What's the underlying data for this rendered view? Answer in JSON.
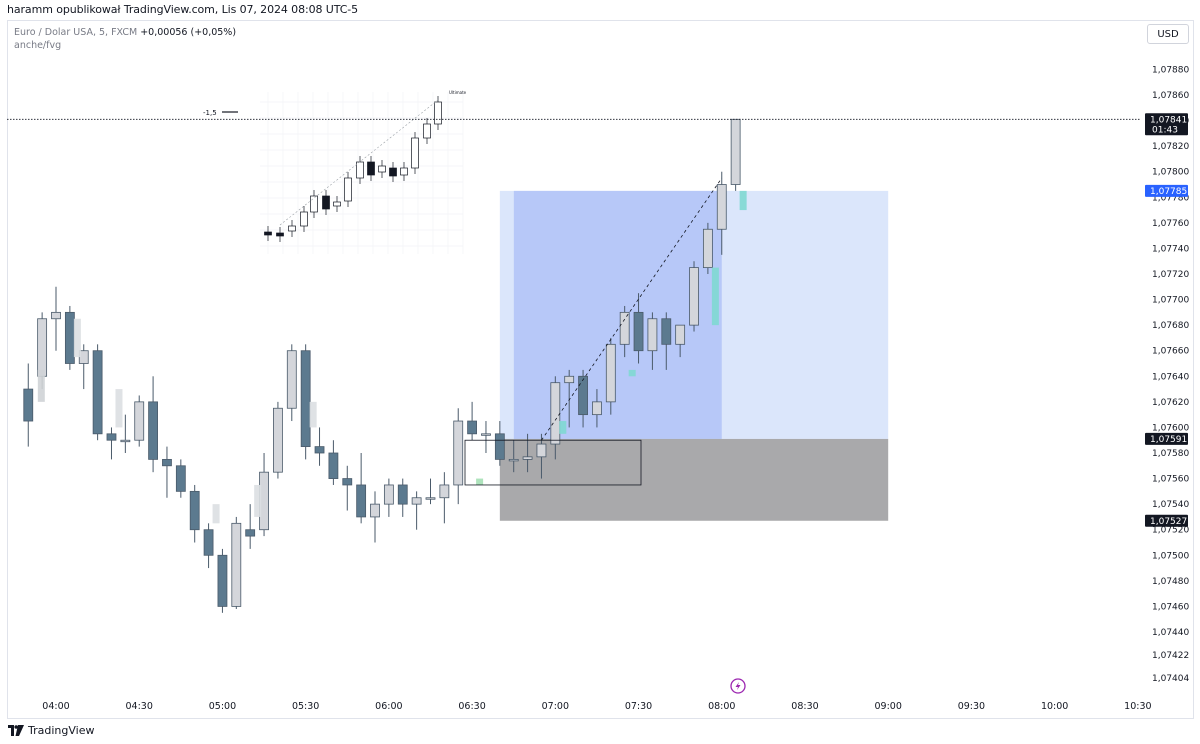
{
  "header": {
    "published_by": "haramm opublikował TradingView.com, Lis 07, 2024 08:08 UTC-5"
  },
  "legend": {
    "symbol": "Euro / Dolar USA, 5, FXCM",
    "change": "+0,00056 (+0,05%)",
    "indicator": "anche/fvg"
  },
  "currency_button": "USD",
  "footer": {
    "brand": "TradingView"
  },
  "inset": {
    "label": "-1,5",
    "small_label": "Ultimate"
  },
  "chart_data": {
    "type": "candlestick",
    "price_axis": {
      "ticks": [
        "1,07880",
        "1,07860",
        "1,07840",
        "1,07820",
        "1,07800",
        "1,07780",
        "1,07760",
        "1,07740",
        "1,07720",
        "1,07700",
        "1,07680",
        "1,07660",
        "1,07640",
        "1,07620",
        "1,07600",
        "1,07580",
        "1,07560",
        "1,07540",
        "1,07520",
        "1,07500",
        "1,07480",
        "1,07460",
        "1,07440",
        "1,07422",
        "1,07404"
      ],
      "range": [
        1.07404,
        1.0788
      ]
    },
    "time_axis": {
      "ticks": [
        "04:00",
        "04:30",
        "05:00",
        "05:30",
        "06:00",
        "06:30",
        "07:00",
        "07:30",
        "08:00",
        "08:30",
        "09:00",
        "09:30",
        "10:00",
        "10:30"
      ]
    },
    "price_labels": [
      {
        "value": 1.07841,
        "text": "1,07841",
        "sub": "01:43",
        "color": "#131722"
      },
      {
        "value": 1.07785,
        "text": "1,07785",
        "color": "#2962ff"
      },
      {
        "value": 1.07591,
        "text": "1,07591",
        "color": "#131722"
      },
      {
        "value": 1.07527,
        "text": "1,07527",
        "color": "#131722"
      }
    ],
    "position_tool": {
      "entry": 1.07591,
      "target": 1.07785,
      "stop": 1.07527,
      "time_start": "06:40",
      "time_end": "09:00"
    },
    "candles": [
      {
        "t": "03:50",
        "o": 1.0763,
        "h": 1.0765,
        "l": 1.07585,
        "c": 1.07605
      },
      {
        "t": "03:55",
        "o": 1.0764,
        "h": 1.0769,
        "l": 1.0763,
        "c": 1.07685
      },
      {
        "t": "04:00",
        "o": 1.07685,
        "h": 1.0771,
        "l": 1.0766,
        "c": 1.0769
      },
      {
        "t": "04:05",
        "o": 1.0769,
        "h": 1.07695,
        "l": 1.07645,
        "c": 1.0765
      },
      {
        "t": "04:10",
        "o": 1.0765,
        "h": 1.07665,
        "l": 1.0763,
        "c": 1.0766
      },
      {
        "t": "04:15",
        "o": 1.0766,
        "h": 1.07665,
        "l": 1.0759,
        "c": 1.07595
      },
      {
        "t": "04:20",
        "o": 1.07595,
        "h": 1.076,
        "l": 1.07575,
        "c": 1.0759
      },
      {
        "t": "04:25",
        "o": 1.0759,
        "h": 1.0761,
        "l": 1.0758,
        "c": 1.0759
      },
      {
        "t": "04:30",
        "o": 1.0759,
        "h": 1.07625,
        "l": 1.07585,
        "c": 1.0762
      },
      {
        "t": "04:35",
        "o": 1.0762,
        "h": 1.0764,
        "l": 1.07565,
        "c": 1.07575
      },
      {
        "t": "04:40",
        "o": 1.07575,
        "h": 1.07585,
        "l": 1.07545,
        "c": 1.0757
      },
      {
        "t": "04:45",
        "o": 1.0757,
        "h": 1.07575,
        "l": 1.07545,
        "c": 1.0755
      },
      {
        "t": "04:50",
        "o": 1.0755,
        "h": 1.07555,
        "l": 1.0751,
        "c": 1.0752
      },
      {
        "t": "04:55",
        "o": 1.0752,
        "h": 1.07525,
        "l": 1.0749,
        "c": 1.075
      },
      {
        "t": "05:00",
        "o": 1.075,
        "h": 1.07505,
        "l": 1.07455,
        "c": 1.0746
      },
      {
        "t": "05:05",
        "o": 1.0746,
        "h": 1.0753,
        "l": 1.07458,
        "c": 1.07525
      },
      {
        "t": "05:10",
        "o": 1.0752,
        "h": 1.0754,
        "l": 1.07505,
        "c": 1.07515
      },
      {
        "t": "05:15",
        "o": 1.0752,
        "h": 1.0758,
        "l": 1.07515,
        "c": 1.07565
      },
      {
        "t": "05:20",
        "o": 1.07565,
        "h": 1.0762,
        "l": 1.0756,
        "c": 1.07615
      },
      {
        "t": "05:25",
        "o": 1.07615,
        "h": 1.07665,
        "l": 1.07605,
        "c": 1.0766
      },
      {
        "t": "05:30",
        "o": 1.0766,
        "h": 1.07665,
        "l": 1.07575,
        "c": 1.07585
      },
      {
        "t": "05:35",
        "o": 1.07585,
        "h": 1.076,
        "l": 1.0757,
        "c": 1.0758
      },
      {
        "t": "05:40",
        "o": 1.0758,
        "h": 1.0759,
        "l": 1.07555,
        "c": 1.0756
      },
      {
        "t": "05:45",
        "o": 1.0756,
        "h": 1.0757,
        "l": 1.07535,
        "c": 1.07555
      },
      {
        "t": "05:50",
        "o": 1.07555,
        "h": 1.0758,
        "l": 1.07525,
        "c": 1.0753
      },
      {
        "t": "05:55",
        "o": 1.0753,
        "h": 1.0755,
        "l": 1.0751,
        "c": 1.0754
      },
      {
        "t": "06:00",
        "o": 1.0754,
        "h": 1.0756,
        "l": 1.0753,
        "c": 1.07555
      },
      {
        "t": "06:05",
        "o": 1.07555,
        "h": 1.0756,
        "l": 1.0753,
        "c": 1.0754
      },
      {
        "t": "06:10",
        "o": 1.0754,
        "h": 1.0755,
        "l": 1.0752,
        "c": 1.07545
      },
      {
        "t": "06:15",
        "o": 1.07545,
        "h": 1.0756,
        "l": 1.0754,
        "c": 1.07545
      },
      {
        "t": "06:20",
        "o": 1.07545,
        "h": 1.07565,
        "l": 1.07525,
        "c": 1.07555
      },
      {
        "t": "06:25",
        "o": 1.07555,
        "h": 1.07615,
        "l": 1.0754,
        "c": 1.07605
      },
      {
        "t": "06:30",
        "o": 1.07605,
        "h": 1.0762,
        "l": 1.0759,
        "c": 1.07595
      },
      {
        "t": "06:35",
        "o": 1.07595,
        "h": 1.07605,
        "l": 1.0758,
        "c": 1.07595
      },
      {
        "t": "06:40",
        "o": 1.07595,
        "h": 1.07605,
        "l": 1.0757,
        "c": 1.07575
      },
      {
        "t": "06:45",
        "o": 1.07575,
        "h": 1.0759,
        "l": 1.07565,
        "c": 1.07575
      },
      {
        "t": "06:50",
        "o": 1.07575,
        "h": 1.07595,
        "l": 1.07565,
        "c": 1.07577
      },
      {
        "t": "06:55",
        "o": 1.07577,
        "h": 1.07595,
        "l": 1.0756,
        "c": 1.07587
      },
      {
        "t": "07:00",
        "o": 1.07587,
        "h": 1.0764,
        "l": 1.07575,
        "c": 1.07635
      },
      {
        "t": "07:05",
        "o": 1.07635,
        "h": 1.07645,
        "l": 1.076,
        "c": 1.0764
      },
      {
        "t": "07:10",
        "o": 1.0764,
        "h": 1.07645,
        "l": 1.076,
        "c": 1.0761
      },
      {
        "t": "07:15",
        "o": 1.0761,
        "h": 1.0763,
        "l": 1.076,
        "c": 1.0762
      },
      {
        "t": "07:20",
        "o": 1.0762,
        "h": 1.0767,
        "l": 1.0761,
        "c": 1.07665
      },
      {
        "t": "07:25",
        "o": 1.07665,
        "h": 1.07695,
        "l": 1.07655,
        "c": 1.0769
      },
      {
        "t": "07:30",
        "o": 1.0769,
        "h": 1.07705,
        "l": 1.0765,
        "c": 1.0766
      },
      {
        "t": "07:35",
        "o": 1.0766,
        "h": 1.0769,
        "l": 1.07645,
        "c": 1.07685
      },
      {
        "t": "07:40",
        "o": 1.07685,
        "h": 1.0769,
        "l": 1.07645,
        "c": 1.07665
      },
      {
        "t": "07:45",
        "o": 1.07665,
        "h": 1.0768,
        "l": 1.07655,
        "c": 1.0768
      },
      {
        "t": "07:50",
        "o": 1.0768,
        "h": 1.0773,
        "l": 1.07675,
        "c": 1.07725
      },
      {
        "t": "07:55",
        "o": 1.07725,
        "h": 1.0776,
        "l": 1.0772,
        "c": 1.07755
      },
      {
        "t": "08:00",
        "o": 1.07755,
        "h": 1.078,
        "l": 1.07735,
        "c": 1.0779
      },
      {
        "t": "08:05",
        "o": 1.0779,
        "h": 1.07841,
        "l": 1.07785,
        "c": 1.07841
      }
    ]
  }
}
